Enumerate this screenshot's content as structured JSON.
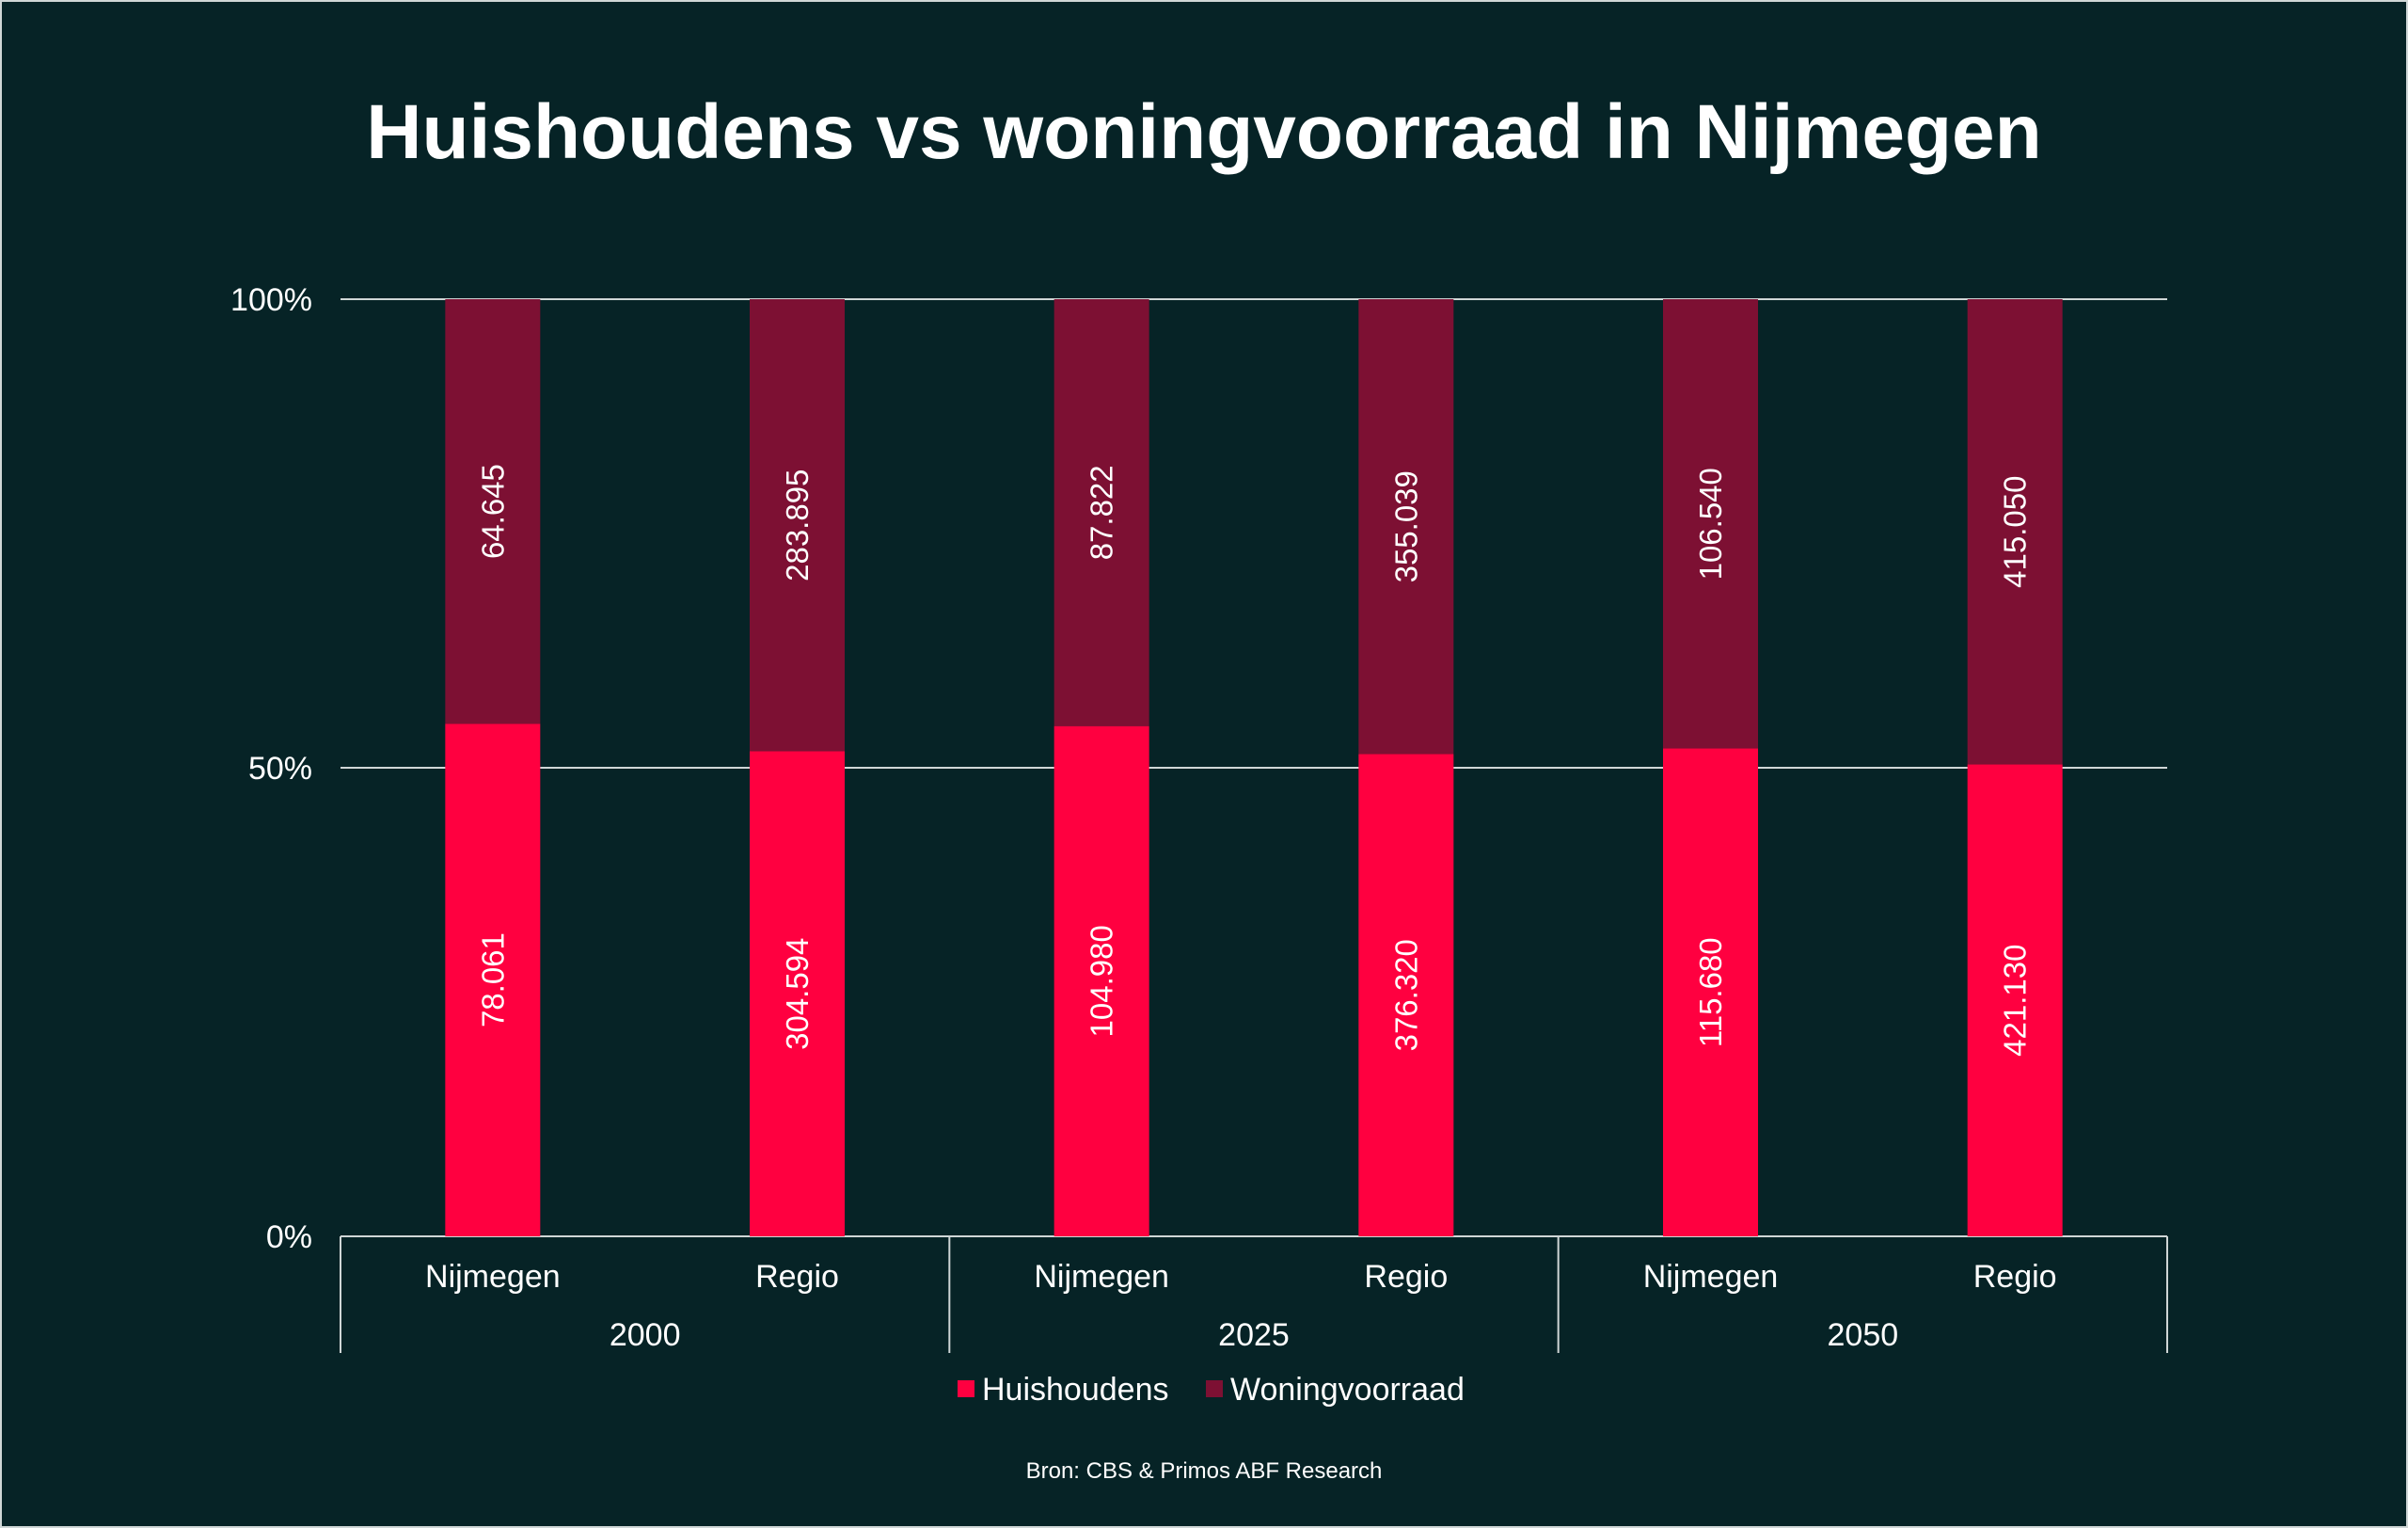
{
  "title": "Huishoudens vs woningvoorraad in Nijmegen",
  "source": "Bron: CBS & Primos ABF Research",
  "colors": {
    "background": "#062326",
    "huishoudens": "#FF0040",
    "woningvoorraad": "#7D1033",
    "gridline": "#cfd6d6"
  },
  "chart_data": {
    "type": "bar",
    "stacked": "percent",
    "ylim": [
      0,
      100
    ],
    "yticks": [
      "0%",
      "50%",
      "100%"
    ],
    "groups": [
      {
        "label": "2000",
        "categories": [
          "Nijmegen",
          "Regio"
        ]
      },
      {
        "label": "2025",
        "categories": [
          "Nijmegen",
          "Regio"
        ]
      },
      {
        "label": "2050",
        "categories": [
          "Nijmegen",
          "Regio"
        ]
      }
    ],
    "categories": [
      "Nijmegen",
      "Regio",
      "Nijmegen",
      "Regio",
      "Nijmegen",
      "Regio"
    ],
    "series": [
      {
        "name": "Huishoudens",
        "values": [
          78061,
          304594,
          104980,
          376320,
          115680,
          421130
        ],
        "labels": [
          "78.061",
          "304.594",
          "104.980",
          "376.320",
          "115.680",
          "421.130"
        ]
      },
      {
        "name": "Woningvoorraad",
        "values": [
          64645,
          283895,
          87822,
          355039,
          106540,
          415050
        ],
        "labels": [
          "64.645",
          "283.895",
          "87.822",
          "355.039",
          "106.540",
          "415.050"
        ]
      }
    ],
    "legend_position": "bottom",
    "grid": true
  }
}
